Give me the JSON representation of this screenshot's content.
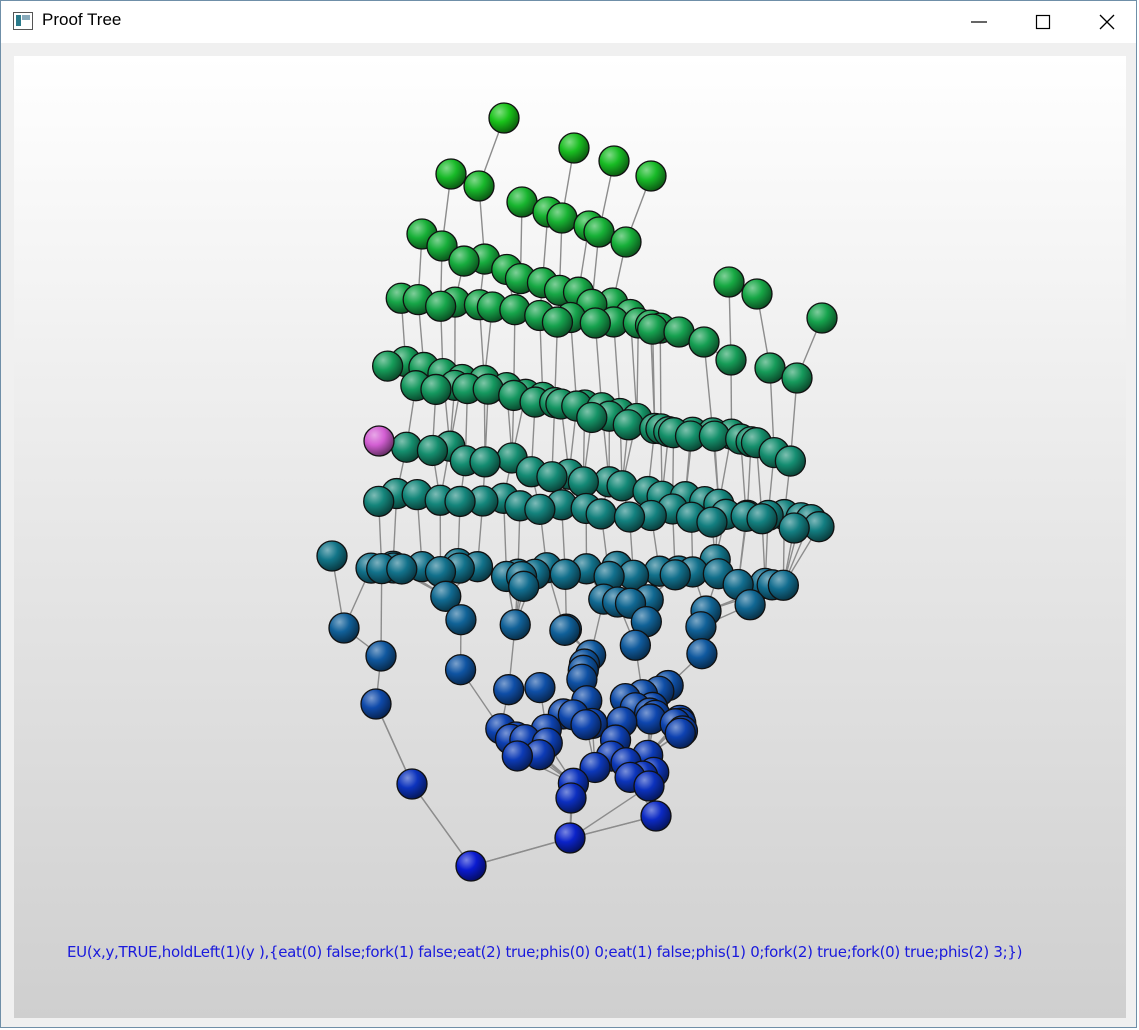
{
  "window": {
    "title": "Proof Tree"
  },
  "controls": {
    "minimize": "minimize-icon",
    "maximize": "maximize-icon",
    "close": "close-icon"
  },
  "colors": {
    "top_node": "#19c319",
    "mid_node": "#14877a",
    "bottom_node": "#0a18d2",
    "highlight_node": "#d35fd3",
    "edge": "#8c8c8c",
    "status_text": "#1a1adc"
  },
  "status": {
    "formula": "EU(x,y,TRUE,holdLeft(1)(y ),{eat(0) false;fork(1) false;eat(2) true;phis(0) 0;eat(1) false;phis(1) 0;fork(2) true;fork(0) true;phis(2) 3;})"
  }
}
